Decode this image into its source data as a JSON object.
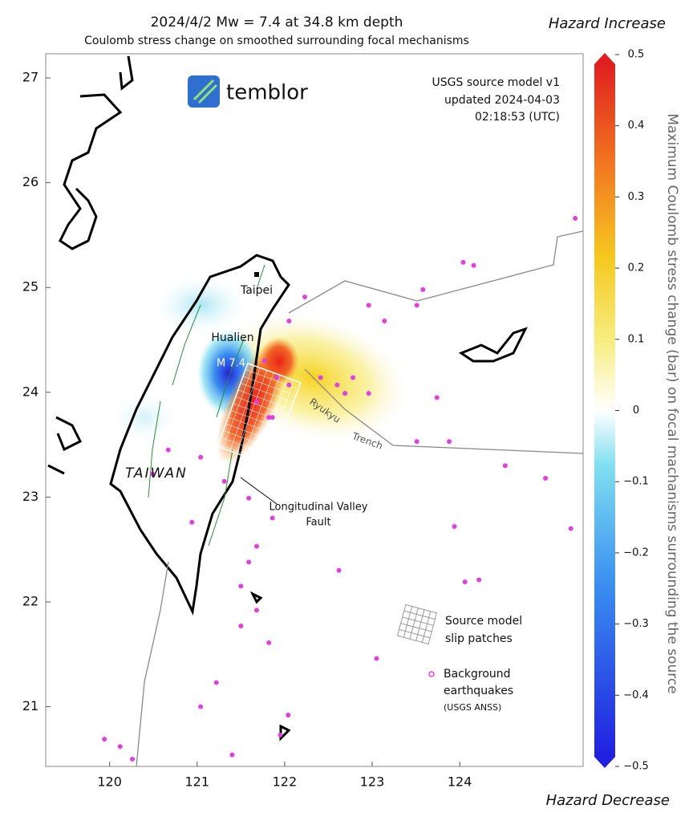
{
  "title": "2024/4/2  Mw = 7.4   at   34.8 km  depth",
  "subtitle": "Coulomb stress change on smoothed surrounding focal mechanisms",
  "hazard_increase": "Hazard Increase",
  "hazard_decrease": "Hazard Decrease",
  "logo": "temblor",
  "model_info": [
    "USGS source model v1",
    "updated 2024-04-03",
    "02:18:53 (UTC)"
  ],
  "labels": {
    "taipei": "Taipei",
    "hualien": "Hualien",
    "magnitude": "M 7.4",
    "taiwan": "TAIWAN",
    "fault": [
      "Longitudinal Valley",
      "Fault"
    ],
    "ryukyu": "Ryukyu",
    "trench": "Trench"
  },
  "legend": {
    "slip": [
      "Source model",
      "slip patches"
    ],
    "quakes": [
      "Background",
      "earthquakes",
      "(USGS ANSS)"
    ]
  },
  "map": {
    "lonlim": [
      119.27,
      125.41
    ],
    "latlim": [
      20.43,
      27.23
    ],
    "lonticks": [
      120,
      121,
      122,
      123,
      124
    ],
    "latticks": [
      21,
      22,
      23,
      24,
      25,
      26,
      27
    ],
    "earthquakes": {
      "lon": [
        125.32,
        124.04,
        124.16,
        123.58,
        123.51,
        122.96,
        123.14,
        122.41,
        122.6,
        122.78,
        122.96,
        122.69,
        123.74,
        123.88,
        123.51,
        124.52,
        124.98,
        123.94,
        125.27,
        122.62,
        124.06,
        124.22,
        121.86,
        121.59,
        121.68,
        121.5,
        121.82,
        121.22,
        122.04,
        121.95,
        119.94,
        120.12,
        120.26,
        121.04,
        121.31,
        120.94,
        120.67,
        120.49,
        121.77,
        121.91,
        122.05,
        121.68,
        121.86,
        122.05,
        122.23,
        121.59,
        121.68,
        121.5,
        121.04,
        121.4,
        123.05,
        121.82
      ],
      "lat": [
        25.66,
        25.24,
        25.21,
        24.98,
        24.83,
        24.83,
        24.68,
        24.14,
        24.07,
        24.14,
        23.99,
        23.99,
        23.95,
        23.53,
        23.53,
        23.3,
        23.18,
        22.72,
        22.7,
        22.3,
        22.19,
        22.21,
        22.8,
        22.38,
        21.92,
        21.77,
        21.61,
        21.23,
        20.92,
        20.73,
        20.69,
        20.62,
        20.5,
        23.38,
        23.15,
        22.76,
        23.45,
        23.22,
        24.3,
        24.14,
        24.07,
        23.91,
        23.76,
        24.68,
        24.91,
        22.99,
        22.53,
        22.15,
        21.0,
        20.54,
        21.46,
        23.76
      ]
    }
  },
  "colorbar": {
    "label": "Maximum Coulomb stress change (bar) on focal machanisms surrounding the source",
    "lim": [
      -0.5,
      0.5
    ],
    "ticks": [
      {
        "value": -0.5,
        "label": "−0.5"
      },
      {
        "value": -0.4,
        "label": "−0.4"
      },
      {
        "value": -0.3,
        "label": "−0.3"
      },
      {
        "value": -0.2,
        "label": "−0.2"
      },
      {
        "value": -0.1,
        "label": "−0.1"
      },
      0,
      0.1,
      0.2,
      0.3,
      0.4,
      0.5
    ]
  }
}
